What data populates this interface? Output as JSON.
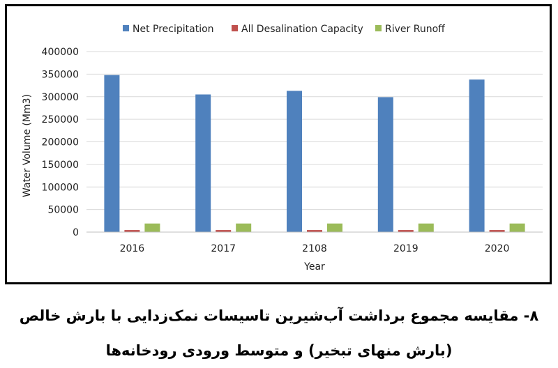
{
  "chart_data": {
    "type": "bar",
    "categories": [
      "2016",
      "2017",
      "2108",
      "2019",
      "2020"
    ],
    "series": [
      {
        "name": "Net Precipitation",
        "values": [
          348000,
          305000,
          313000,
          299000,
          338000
        ],
        "color": "#4f81bd"
      },
      {
        "name": "All Desalination Capacity",
        "values": [
          4500,
          4500,
          4500,
          4500,
          4500
        ],
        "color": "#c0504d"
      },
      {
        "name": "River Runoff",
        "values": [
          19000,
          19000,
          19000,
          19000,
          19000
        ],
        "color": "#9bbb59"
      }
    ],
    "xlabel": "Year",
    "ylabel": "Water Volume (Mm3)",
    "ylim": [
      0,
      400000
    ],
    "yticks": [
      "0",
      "50000",
      "100000",
      "150000",
      "200000",
      "250000",
      "300000",
      "350000",
      "400000"
    ],
    "grid": true,
    "legend": "top"
  },
  "caption": "۸- مقایسه مجموع برداشت آب‌شیرین تاسیسات نمک‌زدایی با بارش خالص (بارش منهای تبخیر) و متوسط ورودی رودخانه‌ها"
}
